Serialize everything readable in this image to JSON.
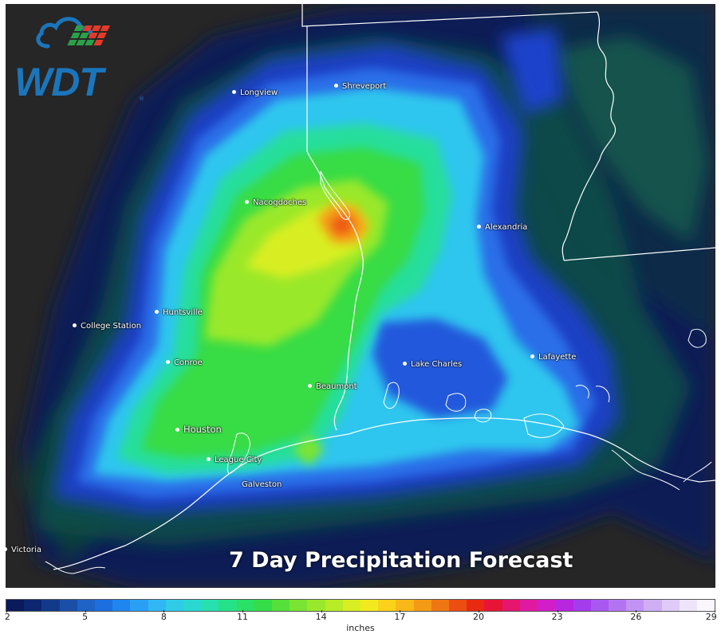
{
  "title": "7 Day Precipitation Forecast",
  "logo": {
    "text": "WDT",
    "trademark": "®",
    "color": "#1b75bb"
  },
  "cities": [
    {
      "id": "longview",
      "name": "Longview",
      "big": false
    },
    {
      "id": "shreveport",
      "name": "Shreveport",
      "big": false
    },
    {
      "id": "nacogdoches",
      "name": "Nacogdoches",
      "big": false
    },
    {
      "id": "alexandria",
      "name": "Alexandria",
      "big": false
    },
    {
      "id": "huntsville",
      "name": "Huntsville",
      "big": false
    },
    {
      "id": "college-station",
      "name": "College Station",
      "big": false
    },
    {
      "id": "lafayette",
      "name": "Lafayette",
      "big": false
    },
    {
      "id": "conroe",
      "name": "Conroe",
      "big": false
    },
    {
      "id": "lake-charles",
      "name": "Lake Charles",
      "big": false
    },
    {
      "id": "beaumont",
      "name": "Beaumont",
      "big": false
    },
    {
      "id": "houston",
      "name": "Houston",
      "big": true
    },
    {
      "id": "league-city",
      "name": "League City",
      "big": false
    },
    {
      "id": "galveston",
      "name": "Galveston",
      "big": false
    },
    {
      "id": "victoria",
      "name": "Victoria",
      "big": false
    }
  ],
  "colorbar": {
    "units": "inches",
    "ticks": [
      "2",
      "5",
      "8",
      "11",
      "14",
      "17",
      "20",
      "23",
      "26",
      "29"
    ],
    "colors": [
      "#0a1a5a",
      "#0c2670",
      "#123a8a",
      "#1a4fa8",
      "#1f63c6",
      "#1d6fe0",
      "#1f86f0",
      "#2aa0f5",
      "#30b8f5",
      "#2fcce8",
      "#2ad8d2",
      "#27e0b0",
      "#25e288",
      "#2ae065",
      "#35de48",
      "#55e03a",
      "#7ae432",
      "#9ae82c",
      "#b8ec26",
      "#d8ee22",
      "#f2ea1e",
      "#fad21a",
      "#f8b818",
      "#f59a16",
      "#f07614",
      "#ec4e12",
      "#e82a10",
      "#e81438",
      "#e6166e",
      "#e01aa0",
      "#d21ec8",
      "#b826e0",
      "#a43cee",
      "#a858f0",
      "#b474f2",
      "#c292f4",
      "#d0aef6",
      "#e0caf8",
      "#eee4fa",
      "#faf6fd"
    ]
  }
}
